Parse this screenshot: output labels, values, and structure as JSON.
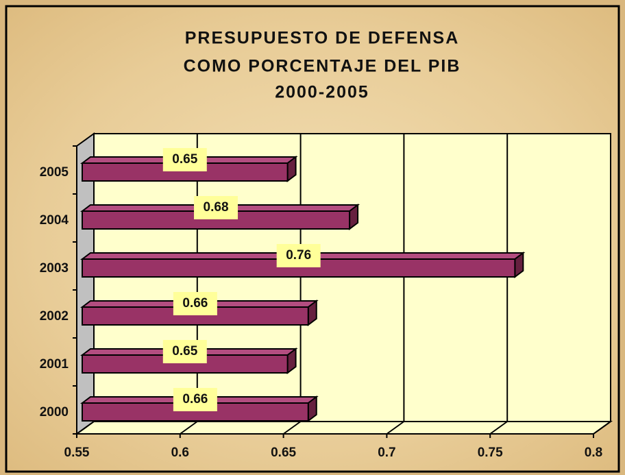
{
  "chart_data": {
    "type": "bar",
    "orientation": "horizontal",
    "title": [
      "PRESUPUESTO DE DEFENSA",
      "COMO PORCENTAJE DEL PIB",
      "2000-2005"
    ],
    "categories": [
      "2000",
      "2001",
      "2002",
      "2003",
      "2004",
      "2005"
    ],
    "values": [
      0.66,
      0.65,
      0.66,
      0.76,
      0.68,
      0.65
    ],
    "color": "#993366",
    "xlim": [
      0.55,
      0.8
    ],
    "xticks": [
      0.55,
      0.6,
      0.65,
      0.7,
      0.75,
      0.8
    ],
    "grid": true
  }
}
